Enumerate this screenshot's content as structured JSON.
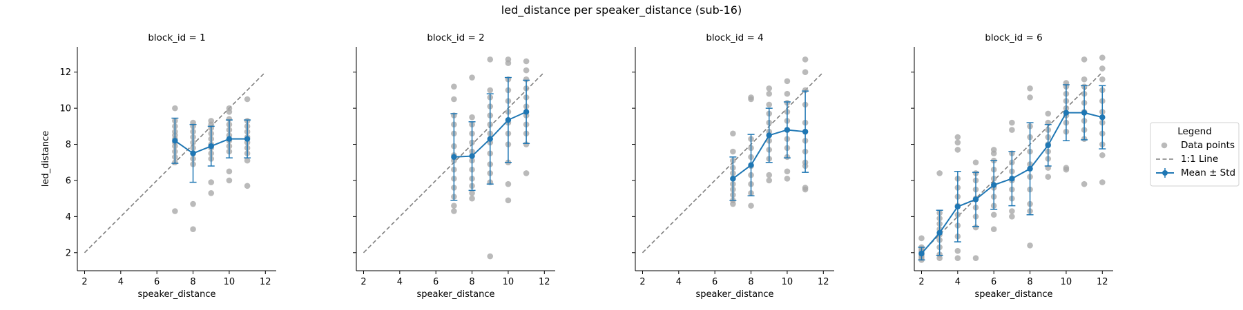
{
  "figure": {
    "title": "led_distance per speaker_distance (sub-16)"
  },
  "chart_data": {
    "type": "scatter",
    "xlabel": "speaker_distance",
    "ylabel": "led_distance",
    "xlim": [
      1.6,
      12.6
    ],
    "ylim": [
      1.0,
      13.4
    ],
    "xticks": [
      2,
      4,
      6,
      8,
      10,
      12
    ],
    "yticks": [
      2,
      4,
      6,
      8,
      10,
      12
    ],
    "grid": false,
    "shared_y": true,
    "colors": {
      "points": "#a6a6a6",
      "mean": "#1f77b4",
      "identity": "#7f7f7f"
    },
    "identity_line": [
      [
        2,
        2
      ],
      [
        12,
        12
      ]
    ],
    "legend": {
      "title": "Legend",
      "placement": "right",
      "entries": [
        "Data points",
        "1:1 Line",
        "Mean ± Std"
      ]
    },
    "panels": [
      {
        "title": "block_id = 1",
        "mean": [
          {
            "x": 7,
            "y": 8.2,
            "std": 1.25
          },
          {
            "x": 8,
            "y": 7.5,
            "std": 1.6
          },
          {
            "x": 9,
            "y": 7.9,
            "std": 1.1
          },
          {
            "x": 10,
            "y": 8.3,
            "std": 1.05
          },
          {
            "x": 11,
            "y": 8.3,
            "std": 1.05
          }
        ],
        "points": [
          [
            7,
            4.3
          ],
          [
            7,
            7.0
          ],
          [
            7,
            7.3
          ],
          [
            7,
            7.6
          ],
          [
            7,
            7.9
          ],
          [
            7,
            8.1
          ],
          [
            7,
            8.3
          ],
          [
            7,
            8.5
          ],
          [
            7,
            8.7
          ],
          [
            7,
            9.0
          ],
          [
            7,
            9.3
          ],
          [
            7,
            10.0
          ],
          [
            8,
            3.3
          ],
          [
            8,
            4.7
          ],
          [
            8,
            6.9
          ],
          [
            8,
            7.2
          ],
          [
            8,
            7.5
          ],
          [
            8,
            7.8
          ],
          [
            8,
            8.1
          ],
          [
            8,
            8.4
          ],
          [
            8,
            8.7
          ],
          [
            8,
            9.0
          ],
          [
            8,
            9.2
          ],
          [
            9,
            5.3
          ],
          [
            9,
            5.9
          ],
          [
            9,
            7.2
          ],
          [
            9,
            7.5
          ],
          [
            9,
            7.8
          ],
          [
            9,
            8.0
          ],
          [
            9,
            8.3
          ],
          [
            9,
            8.6
          ],
          [
            9,
            8.9
          ],
          [
            9,
            9.1
          ],
          [
            9,
            9.3
          ],
          [
            10,
            6.0
          ],
          [
            10,
            6.5
          ],
          [
            10,
            7.6
          ],
          [
            10,
            7.9
          ],
          [
            10,
            8.2
          ],
          [
            10,
            8.5
          ],
          [
            10,
            8.8
          ],
          [
            10,
            9.1
          ],
          [
            10,
            9.4
          ],
          [
            10,
            9.8
          ],
          [
            10,
            10.0
          ],
          [
            11,
            5.7
          ],
          [
            11,
            7.1
          ],
          [
            11,
            7.5
          ],
          [
            11,
            7.8
          ],
          [
            11,
            8.1
          ],
          [
            11,
            8.4
          ],
          [
            11,
            8.7
          ],
          [
            11,
            9.0
          ],
          [
            11,
            9.3
          ],
          [
            11,
            10.5
          ]
        ]
      },
      {
        "title": "block_id = 2",
        "mean": [
          {
            "x": 7,
            "y": 7.3,
            "std": 2.4
          },
          {
            "x": 8,
            "y": 7.35,
            "std": 1.9
          },
          {
            "x": 9,
            "y": 8.3,
            "std": 2.5
          },
          {
            "x": 10,
            "y": 9.35,
            "std": 2.35
          },
          {
            "x": 11,
            "y": 9.8,
            "std": 1.75
          }
        ],
        "points": [
          [
            7,
            4.3
          ],
          [
            7,
            4.6
          ],
          [
            7,
            5.1
          ],
          [
            7,
            5.6
          ],
          [
            7,
            6.1
          ],
          [
            7,
            6.6
          ],
          [
            7,
            7.1
          ],
          [
            7,
            7.4
          ],
          [
            7,
            7.9
          ],
          [
            7,
            8.6
          ],
          [
            7,
            9.1
          ],
          [
            7,
            9.6
          ],
          [
            7,
            10.5
          ],
          [
            7,
            11.2
          ],
          [
            8,
            5.0
          ],
          [
            8,
            5.3
          ],
          [
            8,
            5.7
          ],
          [
            8,
            6.1
          ],
          [
            8,
            6.6
          ],
          [
            8,
            7.1
          ],
          [
            8,
            7.6
          ],
          [
            8,
            8.1
          ],
          [
            8,
            8.6
          ],
          [
            8,
            9.1
          ],
          [
            8,
            9.5
          ],
          [
            8,
            11.7
          ],
          [
            9,
            1.8
          ],
          [
            9,
            5.9
          ],
          [
            9,
            6.4
          ],
          [
            9,
            6.9
          ],
          [
            9,
            7.5
          ],
          [
            9,
            8.1
          ],
          [
            9,
            8.6
          ],
          [
            9,
            9.1
          ],
          [
            9,
            9.6
          ],
          [
            9,
            10.1
          ],
          [
            9,
            10.6
          ],
          [
            9,
            11.0
          ],
          [
            9,
            12.7
          ],
          [
            10,
            4.9
          ],
          [
            10,
            5.8
          ],
          [
            10,
            7.0
          ],
          [
            10,
            8.0
          ],
          [
            10,
            8.6
          ],
          [
            10,
            9.2
          ],
          [
            10,
            9.8
          ],
          [
            10,
            10.4
          ],
          [
            10,
            11.0
          ],
          [
            10,
            11.6
          ],
          [
            10,
            12.5
          ],
          [
            10,
            12.7
          ],
          [
            11,
            6.4
          ],
          [
            11,
            8.0
          ],
          [
            11,
            8.6
          ],
          [
            11,
            9.1
          ],
          [
            11,
            9.6
          ],
          [
            11,
            10.1
          ],
          [
            11,
            10.6
          ],
          [
            11,
            11.1
          ],
          [
            11,
            11.6
          ],
          [
            11,
            12.1
          ],
          [
            11,
            12.6
          ]
        ]
      },
      {
        "title": "block_id = 4",
        "mean": [
          {
            "x": 7,
            "y": 6.1,
            "std": 1.2
          },
          {
            "x": 8,
            "y": 6.85,
            "std": 1.7
          },
          {
            "x": 9,
            "y": 8.5,
            "std": 1.5
          },
          {
            "x": 10,
            "y": 8.8,
            "std": 1.55
          },
          {
            "x": 11,
            "y": 8.7,
            "std": 2.25
          }
        ],
        "points": [
          [
            7,
            4.7
          ],
          [
            7,
            4.9
          ],
          [
            7,
            5.2
          ],
          [
            7,
            5.5
          ],
          [
            7,
            5.8
          ],
          [
            7,
            6.1
          ],
          [
            7,
            6.4
          ],
          [
            7,
            6.7
          ],
          [
            7,
            7.1
          ],
          [
            7,
            7.6
          ],
          [
            7,
            8.6
          ],
          [
            8,
            4.6
          ],
          [
            8,
            5.3
          ],
          [
            8,
            5.8
          ],
          [
            8,
            6.3
          ],
          [
            8,
            6.8
          ],
          [
            8,
            7.3
          ],
          [
            8,
            7.8
          ],
          [
            8,
            8.3
          ],
          [
            8,
            10.5
          ],
          [
            8,
            10.6
          ],
          [
            9,
            6.0
          ],
          [
            9,
            6.3
          ],
          [
            9,
            7.2
          ],
          [
            9,
            7.7
          ],
          [
            9,
            8.2
          ],
          [
            9,
            8.7
          ],
          [
            9,
            9.2
          ],
          [
            9,
            9.7
          ],
          [
            9,
            10.2
          ],
          [
            9,
            10.8
          ],
          [
            9,
            11.1
          ],
          [
            10,
            6.1
          ],
          [
            10,
            6.5
          ],
          [
            10,
            7.3
          ],
          [
            10,
            7.8
          ],
          [
            10,
            8.3
          ],
          [
            10,
            8.8
          ],
          [
            10,
            9.3
          ],
          [
            10,
            9.8
          ],
          [
            10,
            10.3
          ],
          [
            10,
            10.8
          ],
          [
            10,
            11.5
          ],
          [
            11,
            5.5
          ],
          [
            11,
            5.6
          ],
          [
            11,
            6.8
          ],
          [
            11,
            7.0
          ],
          [
            11,
            7.6
          ],
          [
            11,
            8.2
          ],
          [
            11,
            8.7
          ],
          [
            11,
            9.2
          ],
          [
            11,
            10.2
          ],
          [
            11,
            11.0
          ],
          [
            11,
            12.0
          ],
          [
            11,
            12.7
          ]
        ]
      },
      {
        "title": "block_id = 6",
        "mean": [
          {
            "x": 2,
            "y": 1.95,
            "std": 0.35
          },
          {
            "x": 3,
            "y": 3.1,
            "std": 1.25
          },
          {
            "x": 4,
            "y": 4.55,
            "std": 1.95
          },
          {
            "x": 5,
            "y": 4.95,
            "std": 1.5
          },
          {
            "x": 6,
            "y": 5.75,
            "std": 1.35
          },
          {
            "x": 7,
            "y": 6.1,
            "std": 1.5
          },
          {
            "x": 8,
            "y": 6.65,
            "std": 2.55
          },
          {
            "x": 9,
            "y": 7.95,
            "std": 1.15
          },
          {
            "x": 10,
            "y": 9.75,
            "std": 1.55
          },
          {
            "x": 11,
            "y": 9.75,
            "std": 1.5
          },
          {
            "x": 12,
            "y": 9.5,
            "std": 1.75
          }
        ],
        "points": [
          [
            2,
            1.6
          ],
          [
            2,
            1.7
          ],
          [
            2,
            1.8
          ],
          [
            2,
            1.9
          ],
          [
            2,
            2.0
          ],
          [
            2,
            2.1
          ],
          [
            2,
            2.2
          ],
          [
            2,
            2.3
          ],
          [
            2,
            2.8
          ],
          [
            3,
            1.7
          ],
          [
            3,
            1.9
          ],
          [
            3,
            2.3
          ],
          [
            3,
            2.7
          ],
          [
            3,
            3.0
          ],
          [
            3,
            3.3
          ],
          [
            3,
            3.6
          ],
          [
            3,
            3.9
          ],
          [
            3,
            4.2
          ],
          [
            3,
            6.4
          ],
          [
            4,
            1.7
          ],
          [
            4,
            2.1
          ],
          [
            4,
            2.9
          ],
          [
            4,
            3.5
          ],
          [
            4,
            4.1
          ],
          [
            4,
            4.6
          ],
          [
            4,
            5.1
          ],
          [
            4,
            5.6
          ],
          [
            4,
            6.1
          ],
          [
            4,
            7.7
          ],
          [
            4,
            8.1
          ],
          [
            4,
            8.4
          ],
          [
            5,
            1.7
          ],
          [
            5,
            3.4
          ],
          [
            5,
            4.0
          ],
          [
            5,
            4.5
          ],
          [
            5,
            5.0
          ],
          [
            5,
            5.5
          ],
          [
            5,
            6.0
          ],
          [
            5,
            6.4
          ],
          [
            5,
            7.0
          ],
          [
            6,
            3.3
          ],
          [
            6,
            4.1
          ],
          [
            6,
            4.6
          ],
          [
            6,
            5.1
          ],
          [
            6,
            5.6
          ],
          [
            6,
            6.1
          ],
          [
            6,
            6.6
          ],
          [
            6,
            7.1
          ],
          [
            6,
            7.5
          ],
          [
            6,
            7.7
          ],
          [
            7,
            4.0
          ],
          [
            7,
            4.3
          ],
          [
            7,
            5.0
          ],
          [
            7,
            5.5
          ],
          [
            7,
            6.0
          ],
          [
            7,
            6.5
          ],
          [
            7,
            7.0
          ],
          [
            7,
            7.5
          ],
          [
            7,
            8.8
          ],
          [
            7,
            9.2
          ],
          [
            8,
            2.4
          ],
          [
            8,
            4.3
          ],
          [
            8,
            4.7
          ],
          [
            8,
            5.5
          ],
          [
            8,
            6.2
          ],
          [
            8,
            6.9
          ],
          [
            8,
            7.6
          ],
          [
            8,
            8.4
          ],
          [
            8,
            9.0
          ],
          [
            8,
            10.6
          ],
          [
            8,
            11.1
          ],
          [
            9,
            6.2
          ],
          [
            9,
            6.7
          ],
          [
            9,
            7.2
          ],
          [
            9,
            7.6
          ],
          [
            9,
            8.0
          ],
          [
            9,
            8.4
          ],
          [
            9,
            8.8
          ],
          [
            9,
            9.2
          ],
          [
            9,
            9.7
          ],
          [
            10,
            6.6
          ],
          [
            10,
            6.7
          ],
          [
            10,
            8.7
          ],
          [
            10,
            9.2
          ],
          [
            10,
            9.6
          ],
          [
            10,
            10.0
          ],
          [
            10,
            10.4
          ],
          [
            10,
            10.8
          ],
          [
            10,
            11.2
          ],
          [
            10,
            11.4
          ],
          [
            11,
            5.8
          ],
          [
            11,
            8.3
          ],
          [
            11,
            8.8
          ],
          [
            11,
            9.3
          ],
          [
            11,
            9.8
          ],
          [
            11,
            10.3
          ],
          [
            11,
            10.8
          ],
          [
            11,
            11.2
          ],
          [
            11,
            11.6
          ],
          [
            11,
            12.7
          ],
          [
            12,
            5.9
          ],
          [
            12,
            7.4
          ],
          [
            12,
            8.0
          ],
          [
            12,
            8.6
          ],
          [
            12,
            9.2
          ],
          [
            12,
            9.8
          ],
          [
            12,
            10.4
          ],
          [
            12,
            11.0
          ],
          [
            12,
            11.6
          ],
          [
            12,
            12.2
          ],
          [
            12,
            12.8
          ]
        ]
      }
    ]
  }
}
